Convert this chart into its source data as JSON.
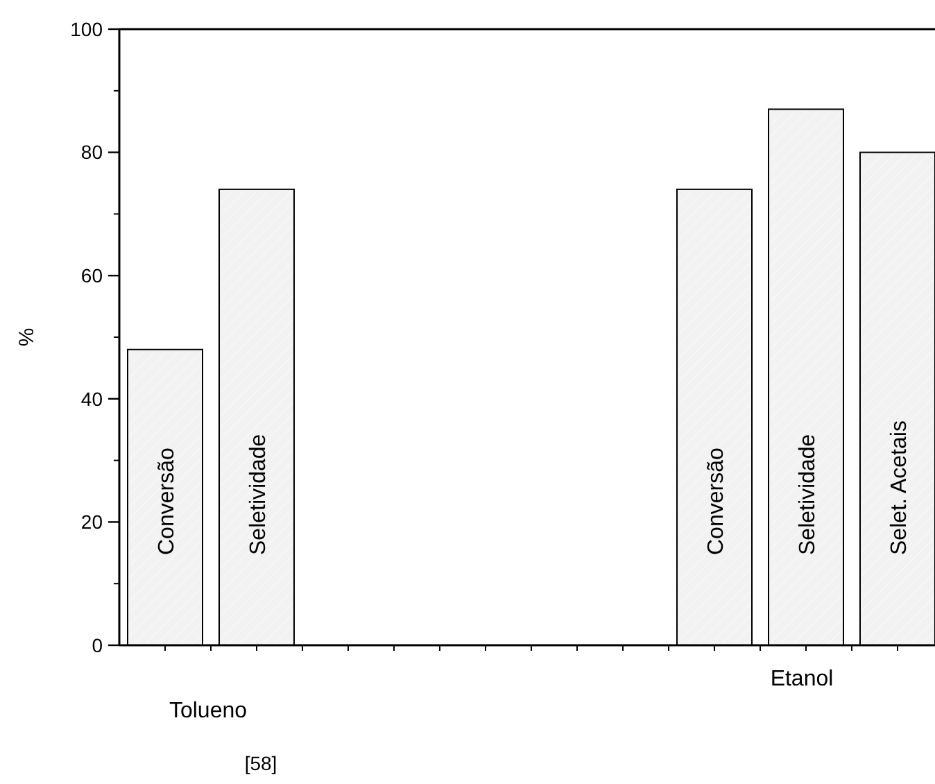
{
  "chart_data": {
    "type": "bar",
    "ylabel": "%",
    "categories": [
      "Conversão",
      "Seletividade",
      null,
      null,
      null,
      null,
      "Conversão",
      "Seletividade",
      "Selet. Acetais"
    ],
    "values": [
      48,
      74,
      null,
      null,
      null,
      null,
      74,
      87,
      80
    ],
    "color": "#f2f2f2",
    "ylim": [
      0,
      100
    ],
    "yticks": [
      0,
      20,
      40,
      60,
      80,
      100
    ],
    "annotations": [
      "Tolueno",
      "Etanol",
      "[58]"
    ]
  }
}
